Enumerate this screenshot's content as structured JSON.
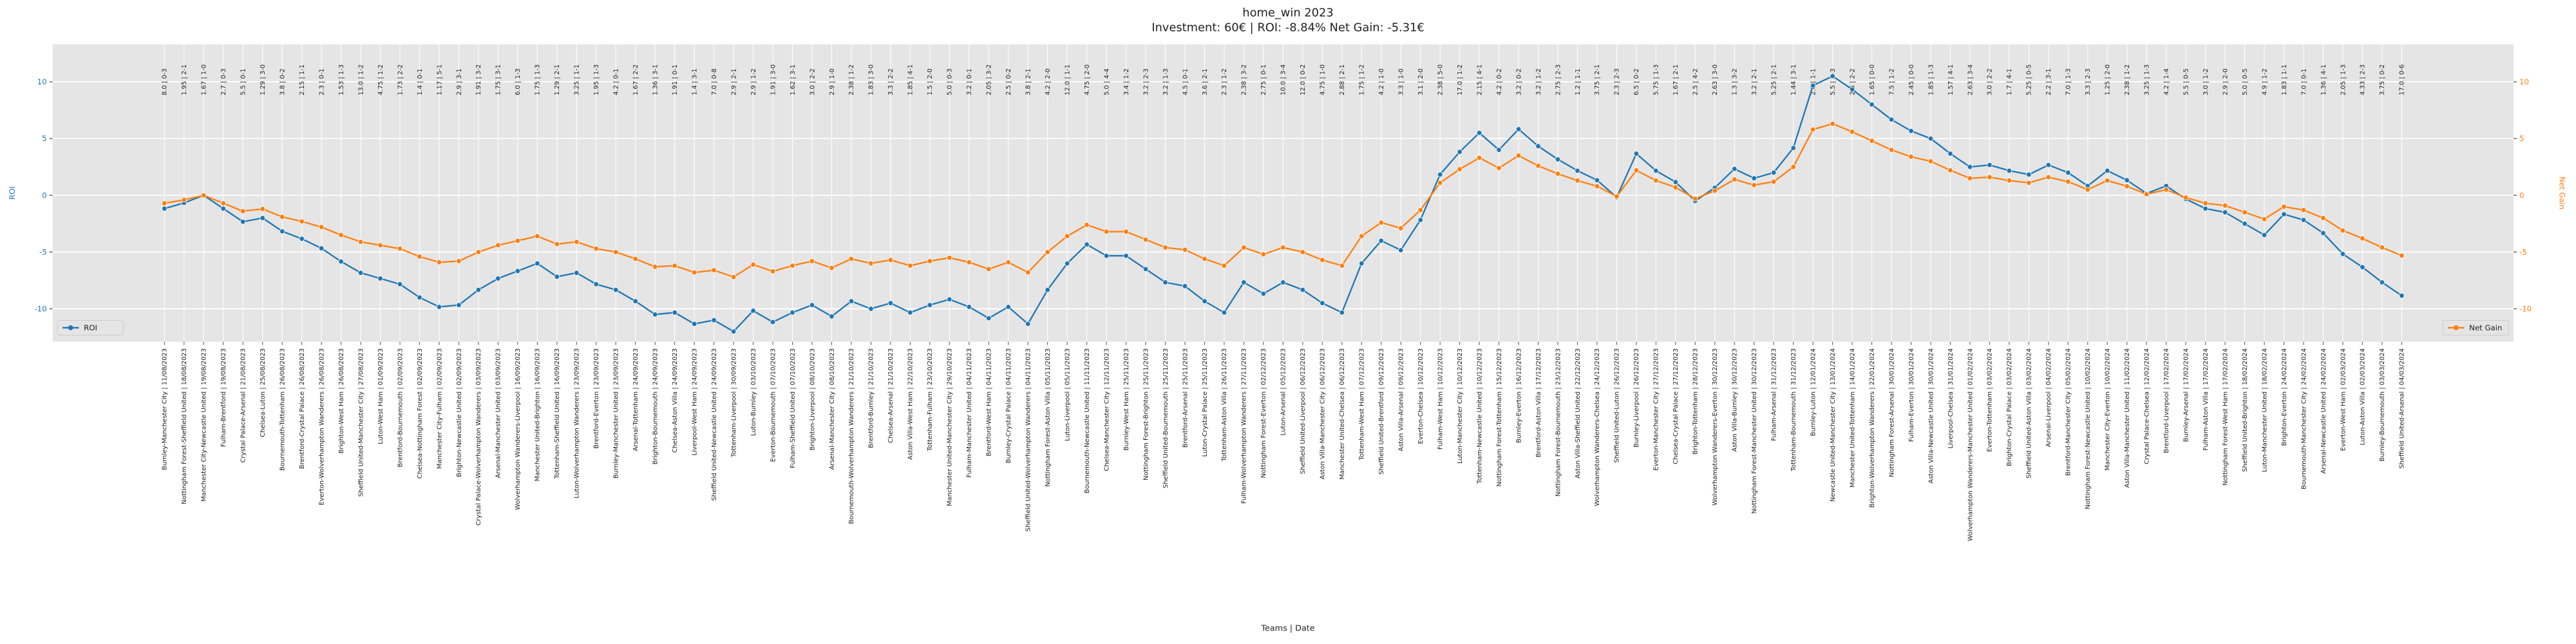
{
  "chart_data": {
    "type": "line",
    "title": "home_win 2023",
    "subtitle": "Investment: 60€ | ROI: -8.84% Net Gain: -5.31€",
    "xlabel": "Teams | Date",
    "ylabel": "ROI",
    "y2label": "Net Gain",
    "categories": [
      "Burnley-Manchester City | 11/08/2023",
      "Nottingham Forest-Sheffield United | 18/08/2023",
      "Manchester City-Newcastle United | 19/08/2023",
      "Fulham-Brentford | 19/08/2023",
      "Crystal Palace-Arsenal | 21/08/2023",
      "Chelsea-Luton | 25/08/2023",
      "Bournemouth-Tottenham | 26/08/2023",
      "Brentford-Crystal Palace | 26/08/2023",
      "Everton-Wolverhampton Wanderers | 26/08/2023",
      "Brighton-West Ham | 26/08/2023",
      "Sheffield United-Manchester City | 27/08/2023",
      "Luton-West Ham | 01/09/2023",
      "Brentford-Bournemouth | 02/09/2023",
      "Chelsea-Nottingham Forest | 02/09/2023",
      "Manchester City-Fulham | 02/09/2023",
      "Brighton-Newcastle United | 02/09/2023",
      "Crystal Palace-Wolverhampton Wanderers | 03/09/2023",
      "Arsenal-Manchester United | 03/09/2023",
      "Wolverhampton Wanderers-Liverpool | 16/09/2023",
      "Manchester United-Brighton | 16/09/2023",
      "Tottenham-Sheffield United | 16/09/2023",
      "Luton-Wolverhampton Wanderers | 23/09/2023",
      "Brentford-Everton | 23/09/2023",
      "Burnley-Manchester United | 23/09/2023",
      "Arsenal-Tottenham | 24/09/2023",
      "Brighton-Bournemouth | 24/09/2023",
      "Chelsea-Aston Villa | 24/09/2023",
      "Liverpool-West Ham | 24/09/2023",
      "Sheffield United-Newcastle United | 24/09/2023",
      "Tottenham-Liverpool | 30/09/2023",
      "Luton-Burnley | 03/10/2023",
      "Everton-Bournemouth | 07/10/2023",
      "Fulham-Sheffield United | 07/10/2023",
      "Brighton-Liverpool | 08/10/2023",
      "Arsenal-Manchester City | 08/10/2023",
      "Bournemouth-Wolverhampton Wanderers | 21/10/2023",
      "Brentford-Burnley | 21/10/2023",
      "Chelsea-Arsenal | 21/10/2023",
      "Aston Villa-West Ham | 22/10/2023",
      "Tottenham-Fulham | 23/10/2023",
      "Manchester United-Manchester City | 29/10/2023",
      "Fulham-Manchester United | 04/11/2023",
      "Brentford-West Ham | 04/11/2023",
      "Burnley-Crystal Palace | 04/11/2023",
      "Sheffield United-Wolverhampton Wanderers | 04/11/2023",
      "Nottingham Forest-Aston Villa | 05/11/2023",
      "Luton-Liverpool | 05/11/2023",
      "Bournemouth-Newcastle United | 11/11/2023",
      "Chelsea-Manchester City | 12/11/2023",
      "Burnley-West Ham | 25/11/2023",
      "Nottingham Forest-Brighton | 25/11/2023",
      "Sheffield United-Bournemouth | 25/11/2023",
      "Brentford-Arsenal | 25/11/2023",
      "Luton-Crystal Palace | 25/11/2023",
      "Tottenham-Aston Villa | 26/11/2023",
      "Fulham-Wolverhampton Wanderers | 27/11/2023",
      "Nottingham Forest-Everton | 02/12/2023",
      "Luton-Arsenal | 05/12/2023",
      "Sheffield United-Liverpool | 06/12/2023",
      "Aston Villa-Manchester City | 06/12/2023",
      "Manchester United-Chelsea | 06/12/2023",
      "Tottenham-West Ham | 07/12/2023",
      "Sheffield United-Brentford | 09/12/2023",
      "Aston Villa-Arsenal | 09/12/2023",
      "Everton-Chelsea | 10/12/2023",
      "Fulham-West Ham | 10/12/2023",
      "Luton-Manchester City | 10/12/2023",
      "Tottenham-Newcastle United | 10/12/2023",
      "Nottingham Forest-Tottenham | 15/12/2023",
      "Burnley-Everton | 16/12/2023",
      "Brentford-Aston Villa | 17/12/2023",
      "Nottingham Forest-Bournemouth | 23/12/2023",
      "Aston Villa-Sheffield United | 22/12/2023",
      "Wolverhampton Wanderers-Chelsea | 24/12/2023",
      "Sheffield United-Luton | 26/12/2023",
      "Burnley-Liverpool | 26/12/2023",
      "Everton-Manchester City | 27/12/2023",
      "Chelsea-Crystal Palace | 27/12/2023",
      "Brighton-Tottenham | 28/12/2023",
      "Wolverhampton Wanderers-Everton | 30/12/2023",
      "Aston Villa-Burnley | 30/12/2023",
      "Nottingham Forest-Manchester United | 30/12/2023",
      "Fulham-Arsenal | 31/12/2023",
      "Tottenham-Bournemouth | 31/12/2023",
      "Burnley-Luton | 12/01/2024",
      "Newcastle United-Manchester City | 13/01/2024",
      "Manchester United-Tottenham | 14/01/2024",
      "Brighton-Wolverhampton Wanderers | 22/01/2024",
      "Nottingham Forest-Arsenal | 30/01/2024",
      "Fulham-Everton | 30/01/2024",
      "Aston Villa-Newcastle United | 30/01/2024",
      "Liverpool-Chelsea | 31/01/2024",
      "Wolverhampton Wanderers-Manchester United | 01/02/2024",
      "Everton-Tottenham | 03/02/2024",
      "Brighton-Crystal Palace | 03/02/2024",
      "Sheffield United-Aston Villa | 03/02/2024",
      "Arsenal-Liverpool | 04/02/2024",
      "Brentford-Manchester City | 05/02/2024",
      "Nottingham Forest-Newcastle United | 10/02/2024",
      "Manchester City-Everton | 10/02/2024",
      "Aston Villa-Manchester United | 11/02/2024",
      "Crystal Palace-Chelsea | 12/02/2024",
      "Brentford-Liverpool | 17/02/2024",
      "Burnley-Arsenal | 17/02/2024",
      "Fulham-Aston Villa | 17/02/2024",
      "Nottingham Forest-West Ham | 17/02/2024",
      "Sheffield United-Brighton | 18/02/2024",
      "Luton-Manchester United | 18/02/2024",
      "Brighton-Everton | 24/02/2024",
      "Bournemouth-Manchester City | 24/02/2024",
      "Arsenal-Newcastle United | 24/02/2024",
      "Everton-West Ham | 02/03/2024",
      "Luton-Aston Villa | 02/03/2024",
      "Burnley-Bournemouth | 03/03/2024",
      "Sheffield United-Arsenal | 04/03/2024"
    ],
    "top_labels": [
      "8.0 | 0-3",
      "1.95 | 2-1",
      "1.67 | 1-0",
      "2.7 | 0-3",
      "5.5 | 0-1",
      "1.29 | 3-0",
      "3.8 | 0-2",
      "2.15 | 1-1",
      "2.3 | 0-1",
      "1.53 | 1-3",
      "13.0 | 1-2",
      "4.75 | 1-2",
      "1.73 | 2-2",
      "1.4 | 0-1",
      "1.17 | 5-1",
      "2.9 | 3-1",
      "1.91 | 3-2",
      "1.75 | 3-1",
      "6.0 | 1-3",
      "1.75 | 1-3",
      "1.29 | 2-1",
      "3.25 | 1-1",
      "1.95 | 1-3",
      "4.2 | 0-1",
      "1.67 | 2-2",
      "1.36 | 3-1",
      "1.91 | 0-1",
      "1.4 | 3-1",
      "7.0 | 0-8",
      "2.9 | 2-1",
      "2.9 | 1-2",
      "1.91 | 3-0",
      "1.62 | 3-1",
      "3.0 | 2-2",
      "2.9 | 1-0",
      "2.38 | 1-2",
      "1.83 | 3-0",
      "3.3 | 2-2",
      "1.85 | 4-1",
      "1.5 | 2-0",
      "5.0 | 0-3",
      "3.2 | 0-1",
      "2.05 | 3-2",
      "2.5 | 0-2",
      "3.8 | 2-1",
      "4.2 | 2-0",
      "12.0 | 1-1",
      "4.75 | 2-0",
      "5.0 | 4-4",
      "3.4 | 1-2",
      "3.2 | 2-3",
      "3.2 | 1-3",
      "4.5 | 0-1",
      "3.6 | 2-1",
      "2.3 | 1-2",
      "2.38 | 3-2",
      "2.75 | 0-1",
      "10.0 | 3-4",
      "12.0 | 0-2",
      "4.75 | 1-0",
      "2.88 | 2-1",
      "1.75 | 1-2",
      "4.2 | 1-0",
      "3.3 | 1-0",
      "3.1 | 2-0",
      "2.38 | 5-0",
      "17.0 | 1-2",
      "2.15 | 4-1",
      "4.2 | 0-2",
      "3.2 | 0-2",
      "3.2 | 1-2",
      "2.75 | 2-3",
      "1.2 | 1-1",
      "3.75 | 2-1",
      "2.3 | 2-3",
      "6.5 | 0-2",
      "5.75 | 1-3",
      "1.67 | 2-1",
      "2.5 | 4-2",
      "2.63 | 3-0",
      "1.3 | 3-2",
      "3.2 | 2-1",
      "5.25 | 2-1",
      "1.44 | 3-1",
      "2.0 | 1-1",
      "5.5 | 2-3",
      "2.5 | 2-2",
      "1.65 | 0-0",
      "7.5 | 1-2",
      "2.45 | 0-0",
      "1.85 | 1-3",
      "1.57 | 4-1",
      "2.63 | 3-4",
      "3.0 | 2-2",
      "1.7 | 4-1",
      "5.25 | 0-5",
      "2.2 | 3-1",
      "7.0 | 1-3",
      "3.3 | 2-3",
      "1.25 | 2-0",
      "2.38 | 1-2",
      "3.25 | 1-3",
      "4.2 | 1-4",
      "5.5 | 0-5",
      "3.0 | 1-2",
      "2.9 | 2-0",
      "5.0 | 0-5",
      "4.9 | 1-2",
      "1.83 | 1-1",
      "7.0 | 0-1",
      "1.36 | 4-1",
      "2.05 | 1-3",
      "4.33 | 2-3",
      "3.75 | 0-2",
      "17.0 | 0-6"
    ],
    "series": [
      {
        "name": "ROI",
        "color": "#1f77b4",
        "axis": "y",
        "legend": "lower left",
        "values": [
          -1.17,
          -0.67,
          0,
          -1.17,
          -2.33,
          -2.0,
          -3.17,
          -3.83,
          -4.67,
          -5.83,
          -6.83,
          -7.33,
          -7.83,
          -9.0,
          -9.83,
          -9.67,
          -8.33,
          -7.33,
          -6.67,
          -6.0,
          -7.17,
          -6.83,
          -7.83,
          -8.33,
          -9.33,
          -10.5,
          -10.33,
          -11.33,
          -11.0,
          -12.0,
          -10.17,
          -11.17,
          -10.33,
          -9.67,
          -10.67,
          -9.33,
          -10.0,
          -9.5,
          -10.33,
          -9.67,
          -9.17,
          -9.83,
          -10.83,
          -9.83,
          -11.33,
          -8.33,
          -6.0,
          -4.33,
          -5.33,
          -5.33,
          -6.5,
          -7.67,
          -8.0,
          -9.33,
          -10.33,
          -7.67,
          -8.67,
          -7.67,
          -8.33,
          -9.5,
          -10.33,
          -6.0,
          -4.0,
          -4.83,
          -2.17,
          1.83,
          3.83,
          5.5,
          4.0,
          5.83,
          4.33,
          3.17,
          2.17,
          1.33,
          -0.17,
          3.67,
          2.17,
          1.17,
          -0.5,
          0.67,
          2.33,
          1.5,
          2.0,
          4.17,
          9.67,
          10.5,
          9.33,
          8.0,
          6.67,
          5.67,
          5.0,
          3.67,
          2.5,
          2.67,
          2.17,
          1.83,
          2.67,
          2.0,
          0.83,
          2.17,
          1.33,
          0.17,
          0.83,
          -0.33,
          -1.17,
          -1.5,
          -2.5,
          -3.5,
          -1.67,
          -2.17,
          -3.33,
          -5.17,
          -6.33,
          -7.67,
          -8.84
        ]
      },
      {
        "name": "Net Gain",
        "color": "#ff7f0e",
        "axis": "y2",
        "legend": "lower right",
        "values": [
          -0.7,
          -0.4,
          0,
          -0.7,
          -1.4,
          -1.2,
          -1.9,
          -2.3,
          -2.8,
          -3.5,
          -4.1,
          -4.4,
          -4.7,
          -5.4,
          -5.9,
          -5.8,
          -5.0,
          -4.4,
          -4.0,
          -3.6,
          -4.3,
          -4.1,
          -4.7,
          -5.0,
          -5.6,
          -6.3,
          -6.2,
          -6.8,
          -6.6,
          -7.2,
          -6.1,
          -6.7,
          -6.2,
          -5.8,
          -6.4,
          -5.6,
          -6.0,
          -5.7,
          -6.2,
          -5.8,
          -5.5,
          -5.9,
          -6.5,
          -5.9,
          -6.8,
          -5.0,
          -3.6,
          -2.6,
          -3.2,
          -3.2,
          -3.9,
          -4.6,
          -4.8,
          -5.6,
          -6.2,
          -4.6,
          -5.2,
          -4.6,
          -5.0,
          -5.7,
          -6.2,
          -3.6,
          -2.4,
          -2.9,
          -1.3,
          1.1,
          2.3,
          3.3,
          2.4,
          3.5,
          2.6,
          1.9,
          1.3,
          0.8,
          -0.1,
          2.2,
          1.3,
          0.7,
          -0.3,
          0.4,
          1.4,
          0.9,
          1.2,
          2.5,
          5.8,
          6.3,
          5.6,
          4.8,
          4.0,
          3.4,
          3.0,
          2.2,
          1.5,
          1.6,
          1.3,
          1.1,
          1.6,
          1.2,
          0.5,
          1.3,
          0.8,
          0.1,
          0.5,
          -0.2,
          -0.7,
          -0.9,
          -1.5,
          -2.1,
          -1.0,
          -1.3,
          -2.0,
          -3.1,
          -3.8,
          -4.6,
          -5.31
        ]
      }
    ],
    "ylim": [
      -12.9,
      13.3
    ],
    "yticks": [
      -10,
      -5,
      0,
      5,
      10
    ],
    "y2lim": [
      -12.9,
      13.3
    ],
    "y2ticks": [
      -10,
      -5,
      0,
      5,
      10
    ],
    "grid": true
  }
}
